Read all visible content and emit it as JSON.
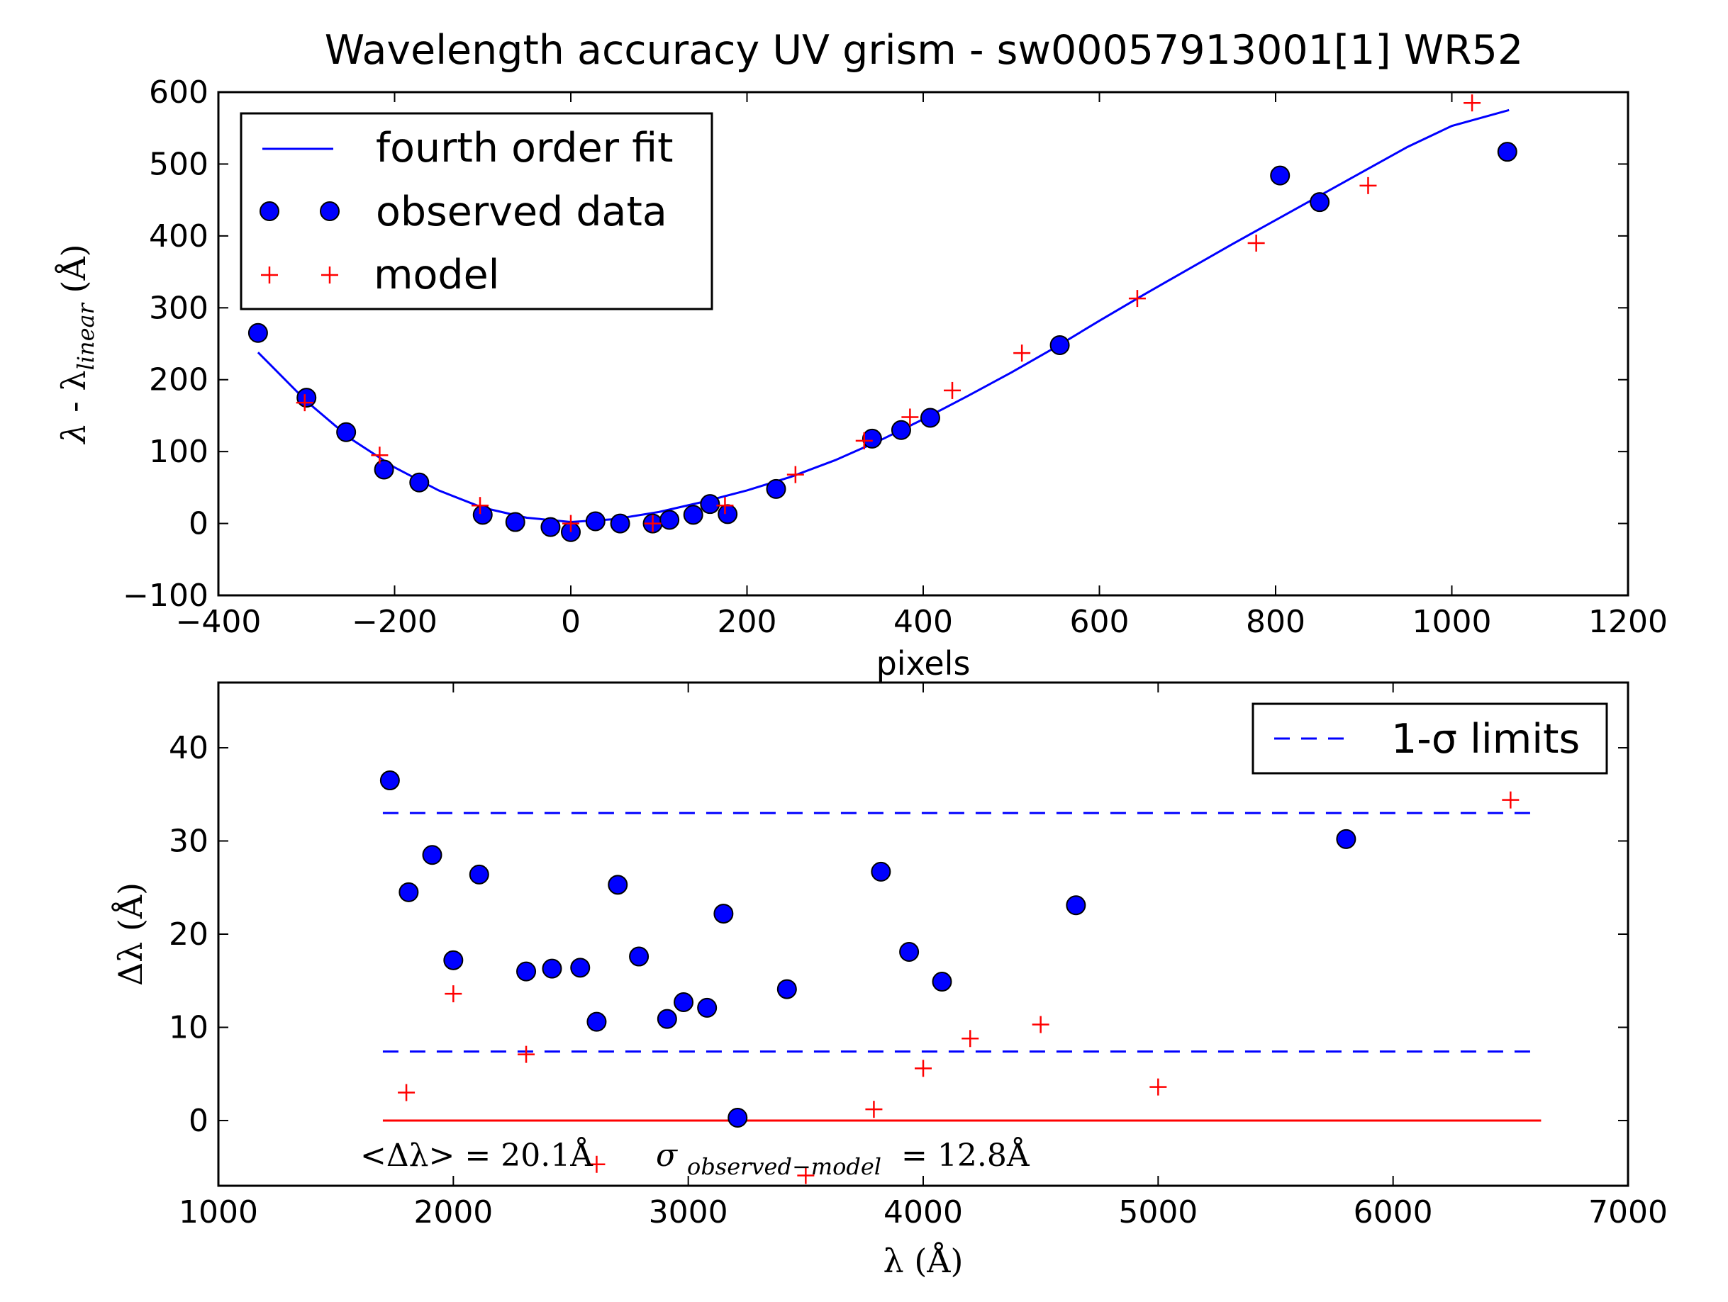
{
  "chart_data": [
    {
      "type": "scatter",
      "title": "Wavelength accuracy UV grism - sw00057913001[1] WR52",
      "xlabel": "pixels",
      "ylabel": "λ - λlinear (Å)",
      "xlim": [
        -400,
        1200
      ],
      "ylim": [
        -100,
        600
      ],
      "xticks": [
        "−400",
        "−200",
        "0",
        "200",
        "400",
        "600",
        "800",
        "1000",
        "1200"
      ],
      "yticks": [
        "−100",
        "0",
        "100",
        "200",
        "300",
        "400",
        "500",
        "600"
      ],
      "legend_position": "top-left",
      "series": [
        {
          "name": "fourth order fit",
          "kind": "line",
          "color": "#0000ff",
          "x": [
            -355,
            -300,
            -250,
            -200,
            -150,
            -100,
            -50,
            0,
            50,
            100,
            150,
            200,
            250,
            300,
            350,
            400,
            450,
            500,
            550,
            600,
            650,
            700,
            750,
            800,
            850,
            900,
            950,
            1000,
            1065
          ],
          "y": [
            238,
            170,
            118,
            78,
            46,
            22,
            8,
            2,
            6,
            16,
            30,
            46,
            65,
            88,
            115,
            145,
            177,
            210,
            245,
            282,
            318,
            353,
            388,
            422,
            456,
            490,
            524,
            553,
            575
          ]
        },
        {
          "name": "observed data",
          "kind": "marker",
          "color": "#0000ff",
          "x": [
            -355,
            -300,
            -255,
            -212,
            -172,
            -100,
            -63,
            -23,
            0,
            28,
            56,
            93,
            112,
            139,
            158,
            178,
            233,
            342,
            375,
            408,
            555,
            805,
            850,
            1063
          ],
          "y": [
            265,
            175,
            127,
            75,
            57,
            12,
            2,
            -5,
            -12,
            3,
            0,
            0,
            5,
            12,
            27,
            13,
            48,
            118,
            130,
            147,
            248,
            484,
            447,
            517
          ]
        },
        {
          "name": "model",
          "kind": "plus",
          "color": "#ff0000",
          "x": [
            -302,
            -217,
            -103,
            0,
            93,
            175,
            255,
            333,
            385,
            433,
            512,
            643,
            778,
            905,
            1023
          ],
          "y": [
            168,
            95,
            25,
            0,
            0,
            25,
            68,
            115,
            148,
            185,
            237,
            313,
            390,
            470,
            585
          ]
        }
      ]
    },
    {
      "type": "scatter",
      "title": "",
      "xlabel": "λ (Å)",
      "ylabel": "Δλ (Å)",
      "xlim": [
        1000,
        7000
      ],
      "ylim": [
        -7,
        47
      ],
      "xticks": [
        "1000",
        "2000",
        "3000",
        "4000",
        "5000",
        "6000",
        "7000"
      ],
      "yticks": [
        "0",
        "10",
        "20",
        "30",
        "40"
      ],
      "legend_position": "top-right",
      "annotations": {
        "mean": "<Δλ> = 20.1Å",
        "sigma_symbol": "σ",
        "sigma_subscript": "observed−model",
        "sigma_value": "= 12.8Å"
      },
      "series": [
        {
          "name": "1-σ limits",
          "kind": "dashed",
          "color": "#0000ff",
          "lines": [
            {
              "x": [
                1700,
                6630
              ],
              "y": [
                33,
                33
              ]
            },
            {
              "x": [
                1700,
                6630
              ],
              "y": [
                7.4,
                7.4
              ]
            }
          ]
        },
        {
          "name": "",
          "kind": "line",
          "color": "#ff0000",
          "x": [
            1700,
            6630
          ],
          "y": [
            0,
            0
          ]
        },
        {
          "name": "",
          "kind": "marker",
          "color": "#0000ff",
          "x": [
            1730,
            1810,
            1910,
            2000,
            2110,
            2310,
            2420,
            2540,
            2610,
            2700,
            2790,
            2910,
            2980,
            3080,
            3150,
            3210,
            3420,
            3820,
            3940,
            4080,
            4650,
            5800
          ],
          "y": [
            36.5,
            24.5,
            28.5,
            17.2,
            26.4,
            16,
            16.3,
            16.4,
            10.6,
            25.3,
            17.6,
            10.9,
            12.7,
            12.1,
            22.2,
            0.3,
            14.1,
            26.7,
            18.1,
            14.9,
            23.1,
            30.2
          ]
        },
        {
          "name": "",
          "kind": "plus",
          "color": "#ff0000",
          "x": [
            1800,
            2000,
            2310,
            2610,
            3500,
            3790,
            4000,
            4200,
            4500,
            5000,
            6500
          ],
          "y": [
            3,
            13.6,
            7.1,
            -4.7,
            -5.9,
            1.2,
            5.6,
            8.8,
            10.3,
            3.6,
            34.4
          ]
        }
      ]
    }
  ]
}
